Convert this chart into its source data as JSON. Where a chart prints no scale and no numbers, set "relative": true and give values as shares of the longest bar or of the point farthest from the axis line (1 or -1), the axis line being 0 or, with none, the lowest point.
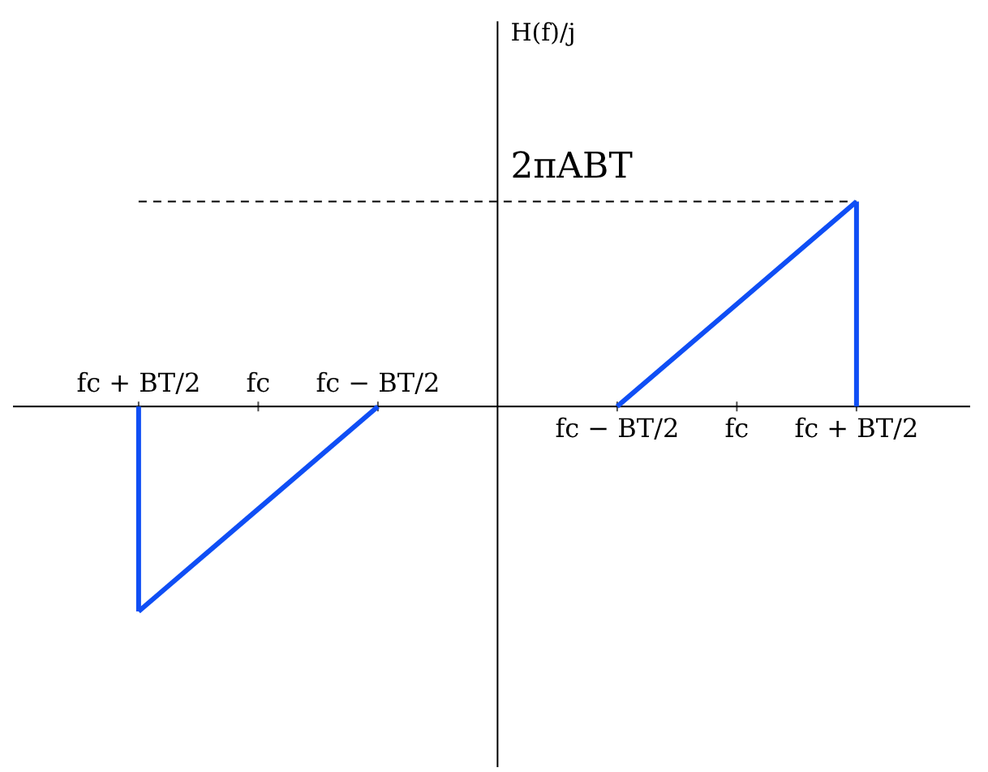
{
  "chart_data": {
    "type": "line",
    "relative": true,
    "annotations": [
      "H(f)/j"
    ],
    "categories": [
      "fc + BT/2",
      "fc",
      "fc − BT/2",
      null,
      "fc − BT/2",
      "fc",
      "fc + BT/2"
    ],
    "series": [
      {
        "color": "#0f4ef5",
        "values": [
          -1,
          -0.5,
          0,
          null,
          null,
          null,
          null
        ]
      },
      {
        "color": "#0f4ef5",
        "values": [
          null,
          null,
          null,
          null,
          0,
          0.5,
          1
        ]
      },
      {
        "type": "bar",
        "color": "#0f4ef5",
        "values": [
          -1,
          null,
          null,
          null,
          null,
          null,
          null
        ]
      },
      {
        "type": "bar",
        "color": "#0f4ef5",
        "values": [
          null,
          null,
          null,
          null,
          null,
          null,
          1
        ]
      }
    ],
    "ref_lines": [
      {
        "axis": "y",
        "value": 1,
        "label": "2πABT",
        "line_style": "dashed",
        "color": "#000000"
      }
    ],
    "marker": "none",
    "line_style": "solid"
  }
}
